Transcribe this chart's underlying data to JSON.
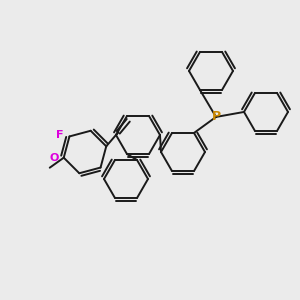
{
  "bg_color": "#ebebeb",
  "bond_color": "#1a1a1a",
  "P_color": "#cc8800",
  "F_color": "#dd00dd",
  "O_color": "#dd00dd",
  "text_F": "F",
  "text_O": "O",
  "text_P": "P",
  "linewidth": 1.4,
  "figsize": [
    3.0,
    3.0
  ],
  "dpi": 100
}
